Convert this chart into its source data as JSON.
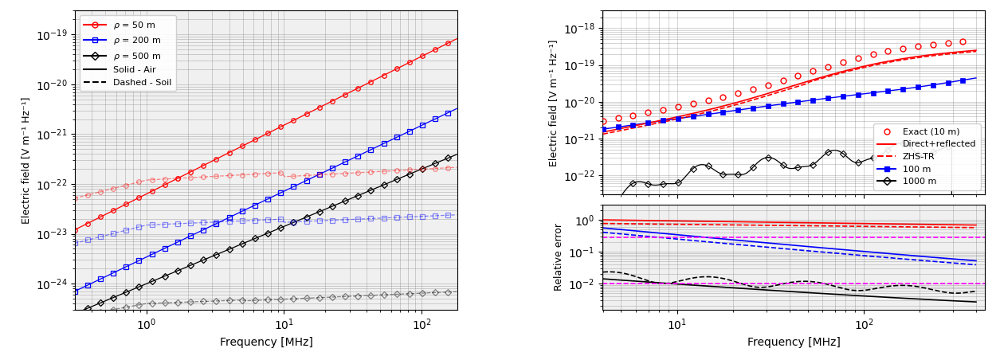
{
  "left_plot": {
    "xlabel": "Frequency [MHz]",
    "ylabel": "Electric field [V m⁻¹ Hz⁻¹]",
    "xlim_log": [
      -0.52,
      2.26
    ],
    "ylim": [
      3e-25,
      3e-19
    ],
    "bg": "#f0f0f0"
  },
  "right_top_plot": {
    "xlabel": "Frequency [MHz]",
    "ylabel": "Electric field [V m⁻¹ Hz⁻¹]",
    "xlim_log": [
      0.6,
      2.65
    ],
    "ylim": [
      3e-23,
      3e-18
    ],
    "bg": "white"
  },
  "right_bottom_plot": {
    "xlabel": "Frequency [MHz]",
    "ylabel": "Relative error",
    "xlim_log": [
      0.6,
      2.65
    ],
    "ylim": [
      0.0015,
      3.0
    ],
    "bg": "#f0f0f0"
  }
}
